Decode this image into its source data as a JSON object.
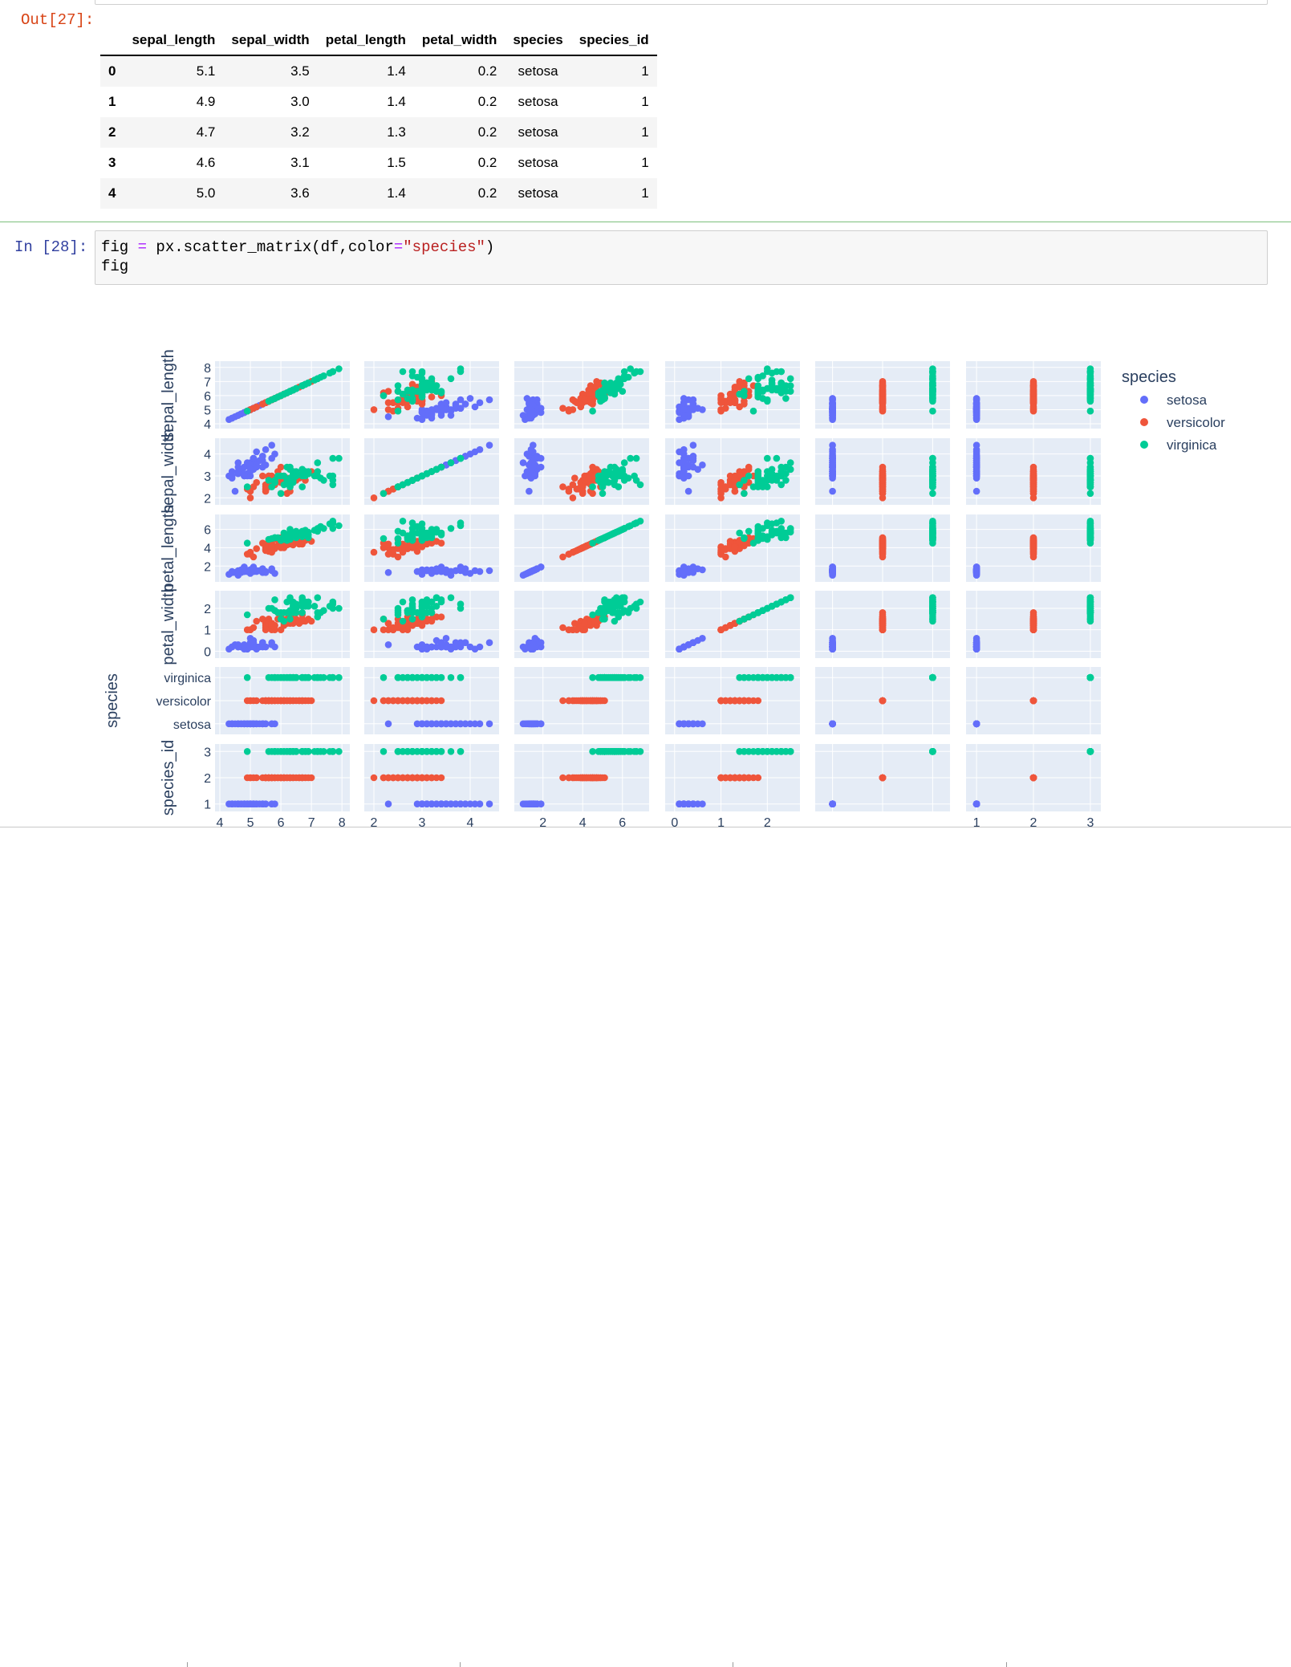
{
  "notebook": {
    "out_prompt": "Out[27]:",
    "in_prompt": "In  [28]:",
    "code": {
      "line1_a": "fig ",
      "line1_eq": "=",
      "line1_b": " px.scatter_matrix(df,color",
      "line1_eq2": "=",
      "line1_str": "\"species\"",
      "line1_c": ")",
      "line2": "fig"
    }
  },
  "dataframe": {
    "columns": [
      "sepal_length",
      "sepal_width",
      "petal_length",
      "petal_width",
      "species",
      "species_id"
    ],
    "rows": [
      {
        "index": "0",
        "sepal_length": "5.1",
        "sepal_width": "3.5",
        "petal_length": "1.4",
        "petal_width": "0.2",
        "species": "setosa",
        "species_id": "1"
      },
      {
        "index": "1",
        "sepal_length": "4.9",
        "sepal_width": "3.0",
        "petal_length": "1.4",
        "petal_width": "0.2",
        "species": "setosa",
        "species_id": "1"
      },
      {
        "index": "2",
        "sepal_length": "4.7",
        "sepal_width": "3.2",
        "petal_length": "1.3",
        "petal_width": "0.2",
        "species": "setosa",
        "species_id": "1"
      },
      {
        "index": "3",
        "sepal_length": "4.6",
        "sepal_width": "3.1",
        "petal_length": "1.5",
        "petal_width": "0.2",
        "species": "setosa",
        "species_id": "1"
      },
      {
        "index": "4",
        "sepal_length": "5.0",
        "sepal_width": "3.6",
        "petal_length": "1.4",
        "petal_width": "0.2",
        "species": "setosa",
        "species_id": "1"
      }
    ]
  },
  "chart_data": {
    "type": "scatter",
    "subtype": "scatter_matrix",
    "dimensions": [
      "sepal_length",
      "sepal_width",
      "petal_length",
      "petal_width",
      "species",
      "species_id"
    ],
    "axis_labels_shown": [
      "sepal_length",
      "sepal_width",
      "petal_length",
      "petal_width",
      "species",
      "species_id"
    ],
    "axis_ranges": {
      "sepal_length": [
        4,
        8.1
      ],
      "sepal_width": [
        1.9,
        4.5
      ],
      "petal_length": [
        0.8,
        7.1
      ],
      "petal_width": [
        -0.1,
        2.6
      ],
      "species": [
        "setosa",
        "versicolor",
        "virginica"
      ],
      "species_id": [
        0.9,
        3.1
      ]
    },
    "y_ticks": {
      "sepal_length": [
        "4",
        "5",
        "6",
        "7",
        "8"
      ],
      "sepal_width": [
        "2",
        "3",
        "4"
      ],
      "petal_length": [
        "2",
        "4",
        "6"
      ],
      "petal_width": [
        "0",
        "1",
        "2"
      ],
      "species": [
        "setosa",
        "versicolor",
        "virginica"
      ],
      "species_id": [
        "1",
        "2",
        "3"
      ]
    },
    "x_ticks": {
      "sepal_length": [
        "4",
        "5",
        "6",
        "7",
        "8"
      ],
      "sepal_width": [
        "2",
        "3",
        "4"
      ],
      "petal_length": [
        "2",
        "4",
        "6"
      ],
      "petal_width": [
        "0",
        "1",
        "2"
      ],
      "species_id": [
        "1",
        "2",
        "3"
      ]
    },
    "legend": {
      "title": "species",
      "position": "right",
      "entries": [
        "setosa",
        "versicolor",
        "virginica"
      ]
    },
    "series": [
      {
        "name": "setosa",
        "color": "#636efa",
        "species_id": 1,
        "sepal_length": [
          5.1,
          4.9,
          4.7,
          4.6,
          5.0,
          5.4,
          4.6,
          5.0,
          4.4,
          4.9,
          5.4,
          4.8,
          4.8,
          4.3,
          5.8,
          5.7,
          5.4,
          5.1,
          5.7,
          5.1,
          5.4,
          5.1,
          4.6,
          5.1,
          4.8,
          5.0,
          5.0,
          5.2,
          5.2,
          4.7,
          4.8,
          5.4,
          5.2,
          5.5,
          4.9,
          5.0,
          5.5,
          4.9,
          4.4,
          5.1,
          5.0,
          4.5,
          4.4,
          5.0,
          5.1,
          4.8,
          5.1,
          4.6,
          5.3,
          5.0
        ],
        "sepal_width": [
          3.5,
          3.0,
          3.2,
          3.1,
          3.6,
          3.9,
          3.4,
          3.4,
          2.9,
          3.1,
          3.7,
          3.4,
          3.0,
          3.0,
          4.0,
          4.4,
          3.9,
          3.5,
          3.8,
          3.8,
          3.4,
          3.7,
          3.6,
          3.3,
          3.4,
          3.0,
          3.4,
          3.5,
          3.4,
          3.2,
          3.1,
          3.4,
          4.1,
          4.2,
          3.1,
          3.2,
          3.5,
          3.6,
          3.0,
          3.4,
          3.5,
          2.3,
          3.2,
          3.5,
          3.8,
          3.0,
          3.8,
          3.2,
          3.7,
          3.3
        ],
        "petal_length": [
          1.4,
          1.4,
          1.3,
          1.5,
          1.4,
          1.7,
          1.4,
          1.5,
          1.4,
          1.5,
          1.5,
          1.6,
          1.4,
          1.1,
          1.2,
          1.5,
          1.3,
          1.4,
          1.7,
          1.5,
          1.7,
          1.5,
          1.0,
          1.7,
          1.9,
          1.6,
          1.6,
          1.5,
          1.4,
          1.6,
          1.6,
          1.5,
          1.5,
          1.4,
          1.5,
          1.2,
          1.3,
          1.4,
          1.3,
          1.5,
          1.3,
          1.3,
          1.3,
          1.6,
          1.9,
          1.4,
          1.6,
          1.4,
          1.5,
          1.4
        ],
        "petal_width": [
          0.2,
          0.2,
          0.2,
          0.2,
          0.2,
          0.4,
          0.3,
          0.2,
          0.2,
          0.1,
          0.2,
          0.2,
          0.1,
          0.1,
          0.2,
          0.4,
          0.4,
          0.3,
          0.3,
          0.3,
          0.2,
          0.4,
          0.2,
          0.5,
          0.2,
          0.2,
          0.4,
          0.2,
          0.2,
          0.2,
          0.2,
          0.4,
          0.1,
          0.2,
          0.2,
          0.2,
          0.2,
          0.1,
          0.2,
          0.2,
          0.3,
          0.3,
          0.2,
          0.6,
          0.4,
          0.3,
          0.2,
          0.2,
          0.2,
          0.2
        ]
      },
      {
        "name": "versicolor",
        "color": "#ef553b",
        "species_id": 2,
        "sepal_length": [
          7.0,
          6.4,
          6.9,
          5.5,
          6.5,
          5.7,
          6.3,
          4.9,
          6.6,
          5.2,
          5.0,
          5.9,
          6.0,
          6.1,
          5.6,
          6.7,
          5.6,
          5.8,
          6.2,
          5.6,
          5.9,
          6.1,
          6.3,
          6.1,
          6.4,
          6.6,
          6.8,
          6.7,
          6.0,
          5.7,
          5.5,
          5.5,
          5.8,
          6.0,
          5.4,
          6.0,
          6.7,
          6.3,
          5.6,
          5.5,
          5.5,
          6.1,
          5.8,
          5.0,
          5.6,
          5.7,
          5.7,
          6.2,
          5.1,
          5.7
        ],
        "sepal_width": [
          3.2,
          3.2,
          3.1,
          2.3,
          2.8,
          2.8,
          3.3,
          2.4,
          2.9,
          2.7,
          2.0,
          3.0,
          2.2,
          2.9,
          2.9,
          3.1,
          3.0,
          2.7,
          2.2,
          2.5,
          3.2,
          2.8,
          2.5,
          2.8,
          2.9,
          3.0,
          2.8,
          3.0,
          2.9,
          2.6,
          2.4,
          2.4,
          2.7,
          2.7,
          3.0,
          3.4,
          3.1,
          2.3,
          3.0,
          2.5,
          2.6,
          3.0,
          2.6,
          2.3,
          2.7,
          3.0,
          2.9,
          2.9,
          2.5,
          2.8
        ],
        "petal_length": [
          4.7,
          4.5,
          4.9,
          4.0,
          4.6,
          4.5,
          4.7,
          3.3,
          4.6,
          3.9,
          3.5,
          4.2,
          4.0,
          4.7,
          3.6,
          4.4,
          4.5,
          4.1,
          4.5,
          3.9,
          4.8,
          4.0,
          4.9,
          4.7,
          4.3,
          4.4,
          4.8,
          5.0,
          4.5,
          3.5,
          3.8,
          3.7,
          3.9,
          5.1,
          4.5,
          4.5,
          4.7,
          4.4,
          4.1,
          4.0,
          4.4,
          4.6,
          4.0,
          3.3,
          4.2,
          4.2,
          4.2,
          4.3,
          3.0,
          4.1
        ],
        "petal_width": [
          1.4,
          1.5,
          1.5,
          1.3,
          1.5,
          1.3,
          1.6,
          1.0,
          1.3,
          1.4,
          1.0,
          1.5,
          1.0,
          1.4,
          1.3,
          1.4,
          1.5,
          1.0,
          1.5,
          1.1,
          1.8,
          1.3,
          1.5,
          1.2,
          1.3,
          1.4,
          1.4,
          1.7,
          1.5,
          1.0,
          1.1,
          1.0,
          1.2,
          1.6,
          1.5,
          1.6,
          1.5,
          1.3,
          1.3,
          1.3,
          1.2,
          1.4,
          1.2,
          1.0,
          1.3,
          1.2,
          1.3,
          1.3,
          1.1,
          1.3
        ]
      },
      {
        "name": "virginica",
        "color": "#00cc96",
        "species_id": 3,
        "sepal_length": [
          6.3,
          5.8,
          7.1,
          6.3,
          6.5,
          7.6,
          4.9,
          7.3,
          6.7,
          7.2,
          6.5,
          6.4,
          6.8,
          5.7,
          5.8,
          6.4,
          6.5,
          7.7,
          7.7,
          6.0,
          6.9,
          5.6,
          7.7,
          6.3,
          6.7,
          7.2,
          6.2,
          6.1,
          6.4,
          7.2,
          7.4,
          7.9,
          6.4,
          6.3,
          6.1,
          7.7,
          6.3,
          6.4,
          6.0,
          6.9,
          6.7,
          6.9,
          5.8,
          6.8,
          6.7,
          6.7,
          6.3,
          6.5,
          6.2,
          5.9
        ],
        "sepal_width": [
          3.3,
          2.7,
          3.0,
          2.9,
          3.0,
          3.0,
          2.5,
          2.9,
          2.5,
          3.6,
          3.2,
          2.7,
          3.0,
          2.5,
          2.8,
          3.2,
          3.0,
          3.8,
          2.6,
          2.2,
          3.2,
          2.8,
          2.8,
          2.7,
          3.3,
          3.2,
          2.8,
          3.0,
          2.8,
          3.0,
          2.8,
          3.8,
          2.8,
          2.8,
          2.6,
          3.0,
          3.4,
          3.1,
          3.0,
          3.1,
          3.1,
          3.1,
          2.7,
          3.2,
          3.3,
          3.0,
          2.5,
          3.0,
          3.4,
          3.0
        ],
        "petal_length": [
          6.0,
          5.1,
          5.9,
          5.6,
          5.8,
          6.6,
          4.5,
          6.3,
          5.8,
          6.1,
          5.1,
          5.3,
          5.5,
          5.0,
          5.1,
          5.3,
          5.5,
          6.7,
          6.9,
          5.0,
          5.7,
          4.9,
          6.7,
          4.9,
          5.7,
          6.0,
          4.8,
          4.9,
          5.6,
          5.8,
          6.1,
          6.4,
          5.6,
          5.1,
          5.6,
          6.1,
          5.6,
          5.5,
          4.8,
          5.4,
          5.6,
          5.1,
          5.1,
          5.9,
          5.7,
          5.2,
          5.0,
          5.2,
          5.4,
          5.1
        ],
        "petal_width": [
          2.5,
          1.9,
          2.1,
          1.8,
          2.2,
          2.1,
          1.7,
          1.8,
          1.8,
          2.5,
          2.0,
          1.9,
          2.1,
          2.0,
          2.4,
          2.3,
          1.8,
          2.2,
          2.3,
          1.5,
          2.3,
          2.0,
          2.0,
          1.8,
          2.1,
          1.8,
          1.8,
          1.8,
          2.1,
          1.6,
          1.9,
          2.0,
          2.2,
          1.5,
          1.4,
          2.3,
          2.4,
          1.8,
          1.8,
          2.1,
          2.4,
          2.3,
          1.9,
          2.3,
          2.5,
          2.3,
          1.9,
          2.0,
          2.3,
          1.8
        ]
      }
    ]
  }
}
